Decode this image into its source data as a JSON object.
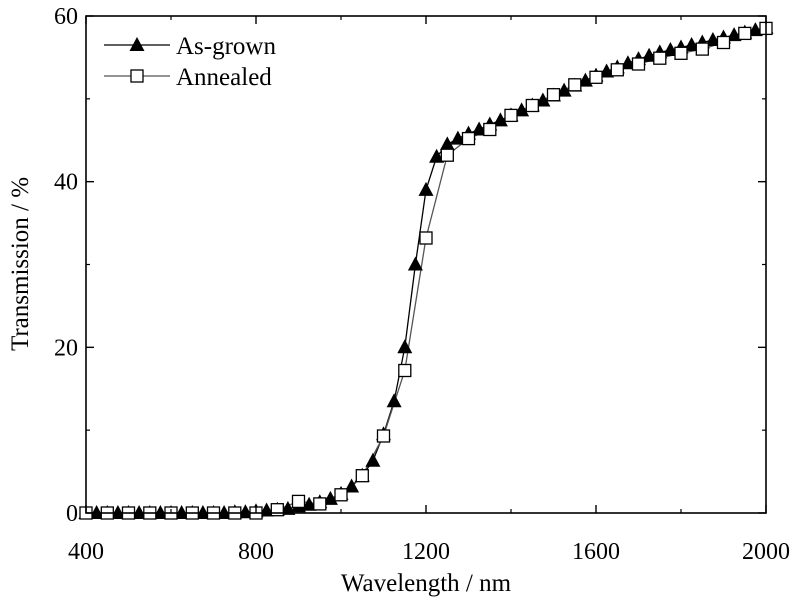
{
  "chart_data": {
    "type": "line",
    "xlabel": "Wavelength / nm",
    "ylabel": "Transmission / %",
    "xlim": [
      400,
      2000
    ],
    "ylim": [
      0,
      60
    ],
    "xticks": [
      400,
      800,
      1200,
      1600,
      2000
    ],
    "yticks": [
      0,
      20,
      40,
      60
    ],
    "x_tick_labels": [
      "400",
      "800",
      "1200",
      "1600",
      "2000"
    ],
    "y_tick_labels": [
      "0",
      "20",
      "40",
      "60"
    ],
    "grid": false,
    "legend_position": "top-left",
    "series": [
      {
        "name": "As-grown",
        "marker": "filled-triangle",
        "color": "#000000",
        "x": [
          400,
          425,
          450,
          475,
          500,
          525,
          550,
          575,
          600,
          625,
          650,
          675,
          700,
          725,
          750,
          775,
          800,
          825,
          850,
          875,
          900,
          925,
          950,
          975,
          1000,
          1025,
          1050,
          1075,
          1100,
          1125,
          1150,
          1175,
          1200,
          1225,
          1250,
          1275,
          1300,
          1325,
          1350,
          1375,
          1400,
          1425,
          1450,
          1475,
          1500,
          1525,
          1550,
          1575,
          1600,
          1625,
          1650,
          1675,
          1700,
          1725,
          1750,
          1775,
          1800,
          1825,
          1850,
          1875,
          1900,
          1925,
          1950,
          1975,
          2000
        ],
        "y": [
          0.0,
          0.0,
          0.0,
          0.0,
          0.0,
          0.0,
          0.0,
          0.0,
          0.0,
          0.0,
          0.0,
          0.0,
          0.0,
          0.0,
          0.1,
          0.1,
          0.2,
          0.3,
          0.4,
          0.5,
          0.8,
          1.0,
          1.3,
          1.7,
          2.3,
          3.2,
          4.5,
          6.3,
          9.5,
          13.5,
          20.0,
          30.0,
          39.0,
          43.0,
          44.5,
          45.2,
          45.8,
          46.3,
          46.9,
          47.4,
          48.0,
          48.6,
          49.2,
          49.8,
          50.4,
          51.0,
          51.6,
          52.2,
          52.8,
          53.3,
          53.8,
          54.3,
          54.8,
          55.2,
          55.6,
          55.9,
          56.2,
          56.5,
          56.8,
          57.1,
          57.4,
          57.7,
          58.0,
          58.3,
          58.6
        ]
      },
      {
        "name": "Annealed",
        "marker": "open-square",
        "color": "#000000",
        "x": [
          400,
          450,
          500,
          550,
          600,
          650,
          700,
          750,
          800,
          850,
          900,
          950,
          1000,
          1050,
          1100,
          1150,
          1200,
          1250,
          1300,
          1350,
          1400,
          1450,
          1500,
          1550,
          1600,
          1650,
          1700,
          1750,
          1800,
          1850,
          1900,
          1950,
          2000
        ],
        "y": [
          0.0,
          0.0,
          0.0,
          0.0,
          0.0,
          0.0,
          0.0,
          0.0,
          0.0,
          0.4,
          1.4,
          1.1,
          2.2,
          4.5,
          9.3,
          17.2,
          33.2,
          43.2,
          45.2,
          46.3,
          48.0,
          49.2,
          50.5,
          51.7,
          52.6,
          53.5,
          54.2,
          54.9,
          55.5,
          56.0,
          56.8,
          57.9,
          58.5
        ]
      }
    ]
  }
}
